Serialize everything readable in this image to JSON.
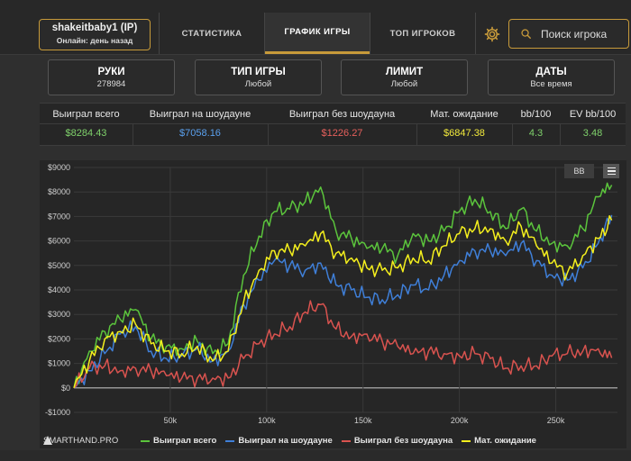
{
  "user": {
    "name": "shakeitbaby1 (IP)",
    "status": "Онлайн: день назад"
  },
  "nav": {
    "tabs": [
      "СТАТИСТИКА",
      "ГРАФИК ИГРЫ",
      "ТОП ИГРОКОВ"
    ],
    "active": "ГРАФИК ИГРЫ"
  },
  "search": {
    "placeholder": "Поиск игрока"
  },
  "filters": [
    {
      "title": "РУКИ",
      "value": "278984"
    },
    {
      "title": "ТИП ИГРЫ",
      "value": "Любой"
    },
    {
      "title": "ЛИМИТ",
      "value": "Любой"
    },
    {
      "title": "ДАТЫ",
      "value": "Все время"
    }
  ],
  "stats": {
    "headers": [
      "Выиграл всего",
      "Выиграл на шоудауне",
      "Выиграл без шоудауна",
      "Мат. ожидание",
      "bb/100",
      "EV bb/100"
    ],
    "values": [
      "$8284.43",
      "$7058.16",
      "$1226.27",
      "$6847.38",
      "4.3",
      "3.48"
    ],
    "colors": [
      "#7fd16b",
      "#5aa0ee",
      "#e6605c",
      "#f2ea3c",
      "#7fd16b",
      "#7fd16b"
    ]
  },
  "toolbar": {
    "bb_label": "BB"
  },
  "brand": "SMARTHAND.PRO",
  "colors": {
    "green": "#5bc43c",
    "blue": "#3f7fd8",
    "red": "#d9534f",
    "yellow": "#f4ef1d",
    "accent": "#c79a3a"
  },
  "chart_data": {
    "type": "line",
    "xlabel": "",
    "ylabel": "",
    "xlim": [
      0,
      282000
    ],
    "ylim": [
      -1000,
      9000
    ],
    "yticks": [
      -1000,
      0,
      1000,
      2000,
      3000,
      4000,
      5000,
      6000,
      7000,
      8000,
      9000
    ],
    "ytick_labels": [
      "-$1000",
      "$0",
      "$1000",
      "$2000",
      "$3000",
      "$4000",
      "$5000",
      "$6000",
      "$7000",
      "$8000",
      "$9000"
    ],
    "xticks": [
      50000,
      100000,
      150000,
      200000,
      250000
    ],
    "xtick_labels": [
      "50k",
      "100k",
      "150k",
      "200k",
      "250k"
    ],
    "grid": true,
    "legend": "bottom",
    "series": [
      {
        "name": "Выиграл всего",
        "color": "#5bc43c",
        "x": [
          0,
          8000,
          16000,
          24000,
          32000,
          40000,
          48000,
          56000,
          64000,
          72000,
          80000,
          88000,
          96000,
          104000,
          112000,
          120000,
          128000,
          136000,
          144000,
          152000,
          160000,
          168000,
          176000,
          184000,
          192000,
          200000,
          208000,
          216000,
          224000,
          232000,
          240000,
          248000,
          256000,
          264000,
          272000,
          278984
        ],
        "values": [
          0,
          1500,
          2300,
          2800,
          3200,
          2000,
          1700,
          1600,
          1900,
          1400,
          1800,
          4600,
          6200,
          7200,
          7300,
          7600,
          8200,
          6400,
          6100,
          5700,
          5700,
          5400,
          6300,
          6000,
          6400,
          7200,
          7700,
          7200,
          6500,
          7300,
          6400,
          5900,
          5800,
          6500,
          7800,
          8284
        ]
      },
      {
        "name": "Выиграл на шоудауне",
        "color": "#3f7fd8",
        "x": [
          0,
          8000,
          16000,
          24000,
          32000,
          40000,
          48000,
          56000,
          64000,
          72000,
          80000,
          88000,
          96000,
          104000,
          112000,
          120000,
          128000,
          136000,
          144000,
          152000,
          160000,
          168000,
          176000,
          184000,
          192000,
          200000,
          208000,
          216000,
          224000,
          232000,
          240000,
          248000,
          256000,
          264000,
          272000,
          278984
        ],
        "values": [
          0,
          700,
          1400,
          2200,
          2500,
          1500,
          1200,
          1300,
          1600,
          1100,
          1500,
          3400,
          4400,
          5200,
          5000,
          4800,
          5100,
          4200,
          4000,
          3700,
          3600,
          3800,
          4200,
          4000,
          4600,
          5200,
          5600,
          5600,
          5400,
          5900,
          5200,
          4600,
          4400,
          4900,
          5900,
          7058
        ]
      },
      {
        "name": "Выиграл без шоудауна",
        "color": "#d9534f",
        "x": [
          0,
          8000,
          16000,
          24000,
          32000,
          40000,
          48000,
          56000,
          64000,
          72000,
          80000,
          88000,
          96000,
          104000,
          112000,
          120000,
          128000,
          136000,
          144000,
          152000,
          160000,
          168000,
          176000,
          184000,
          192000,
          200000,
          208000,
          216000,
          224000,
          232000,
          240000,
          248000,
          256000,
          264000,
          272000,
          278984
        ],
        "values": [
          0,
          800,
          900,
          700,
          800,
          700,
          500,
          400,
          400,
          400,
          400,
          1200,
          1800,
          2200,
          2500,
          3100,
          3400,
          2400,
          2100,
          2200,
          1900,
          1700,
          1400,
          1500,
          1400,
          1300,
          1400,
          1200,
          800,
          900,
          900,
          1300,
          1400,
          1500,
          1600,
          1226
        ]
      },
      {
        "name": "Мат. ожидание",
        "color": "#f4ef1d",
        "x": [
          0,
          8000,
          16000,
          24000,
          32000,
          40000,
          48000,
          56000,
          64000,
          72000,
          80000,
          88000,
          96000,
          104000,
          112000,
          120000,
          128000,
          136000,
          144000,
          152000,
          160000,
          168000,
          176000,
          184000,
          192000,
          200000,
          208000,
          216000,
          224000,
          232000,
          240000,
          248000,
          256000,
          264000,
          272000,
          278984
        ],
        "values": [
          0,
          1100,
          2000,
          2300,
          2600,
          1800,
          1500,
          1400,
          1700,
          1100,
          1500,
          3500,
          4800,
          5600,
          5600,
          5800,
          6300,
          5500,
          5300,
          4900,
          4800,
          4900,
          5300,
          5200,
          5800,
          6300,
          6500,
          6500,
          6000,
          6600,
          5800,
          5100,
          4700,
          5400,
          6100,
          6847
        ]
      }
    ]
  }
}
